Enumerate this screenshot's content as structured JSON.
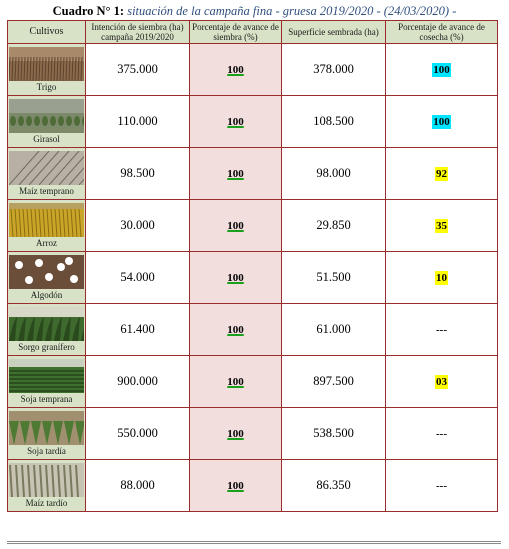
{
  "title": {
    "label": "Cuadro N° 1:",
    "text": "situación de la campaña fina - gruesa 2019/2020 - (24/03/2020) -"
  },
  "headers": {
    "cultivos": "Cultivos",
    "intencion": "Intención de siembra (ha) campaña 2019/2020",
    "avance_siembra": "Porcentaje de avance de siembra (%)",
    "superficie": "Superficie sembrada (ha)",
    "avance_cosecha": "Porcentaje de avance de cosecha (%)"
  },
  "rows": [
    {
      "crop": "Trigo",
      "photo": "wheat-field-photo",
      "intencion": "375.000",
      "siembra": "100",
      "superficie": "378.000",
      "cosecha": "100",
      "cosecha_hl": "cyan"
    },
    {
      "crop": "Girasol",
      "photo": "sunflower-field-photo",
      "intencion": "110.000",
      "siembra": "100",
      "superficie": "108.500",
      "cosecha": "100",
      "cosecha_hl": "cyan"
    },
    {
      "crop": "Maíz temprano",
      "photo": "early-corn-field-photo",
      "intencion": "98.500",
      "siembra": "100",
      "superficie": "98.000",
      "cosecha": "92",
      "cosecha_hl": "yellow"
    },
    {
      "crop": "Arroz",
      "photo": "rice-field-photo",
      "intencion": "30.000",
      "siembra": "100",
      "superficie": "29.850",
      "cosecha": "35",
      "cosecha_hl": "yellow"
    },
    {
      "crop": "Algodón",
      "photo": "cotton-field-photo",
      "intencion": "54.000",
      "siembra": "100",
      "superficie": "51.500",
      "cosecha": "10",
      "cosecha_hl": "yellow"
    },
    {
      "crop": "Sorgo granífero",
      "photo": "sorghum-field-photo",
      "intencion": "61.400",
      "siembra": "100",
      "superficie": "61.000",
      "cosecha": "---",
      "cosecha_hl": "none"
    },
    {
      "crop": "Soja temprana",
      "photo": "early-soy-field-photo",
      "intencion": "900.000",
      "siembra": "100",
      "superficie": "897.500",
      "cosecha": "03",
      "cosecha_hl": "yellow"
    },
    {
      "crop": "Soja tardía",
      "photo": "late-soy-field-photo",
      "intencion": "550.000",
      "siembra": "100",
      "superficie": "538.500",
      "cosecha": "---",
      "cosecha_hl": "none"
    },
    {
      "crop": "Maíz tardío",
      "photo": "late-corn-field-photo",
      "intencion": "88.000",
      "siembra": "100",
      "superficie": "86.350",
      "cosecha": "---",
      "cosecha_hl": "none"
    }
  ],
  "colors": {
    "header_bg": "#d8e2c6",
    "border": "#9b2c2c",
    "pink_cell": "#f3dede",
    "highlight_cyan": "#00e5ff",
    "highlight_yellow": "#ffff00",
    "underline_green": "#1aa01a",
    "title_italic": "#2f4f7f"
  }
}
